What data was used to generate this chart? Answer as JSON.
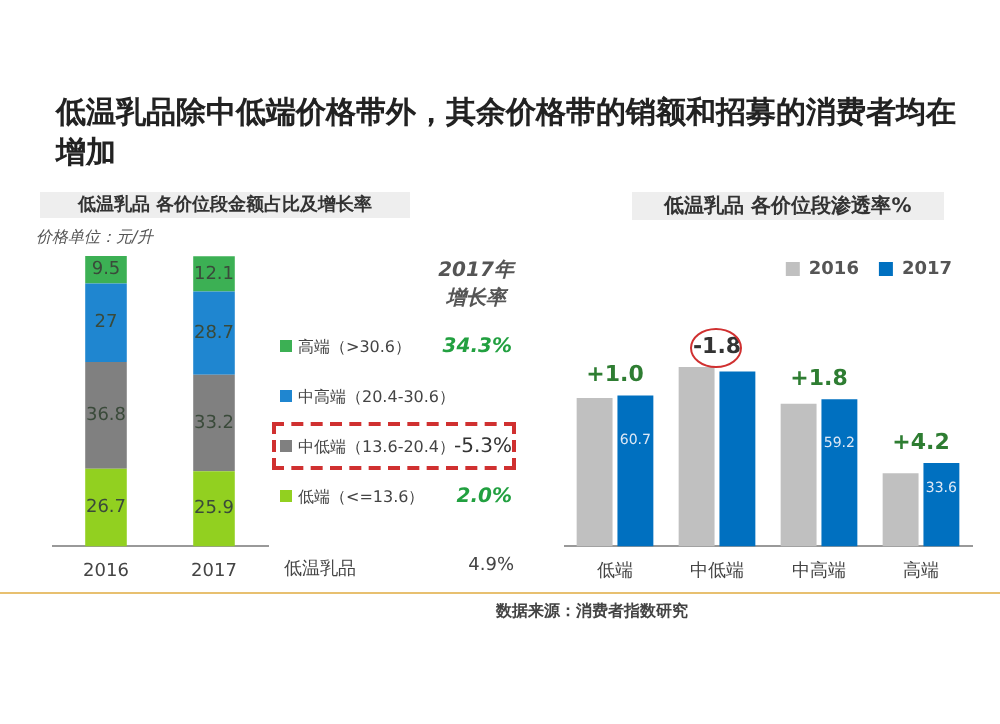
{
  "chart_data": [
    {
      "type": "bar",
      "title": "低温乳品除中低端价格带外，其余价格带的销额和招募的消费者均在增加",
      "subtitle": "低温乳品  各价位段金额占比及增长率",
      "categories": [
        "2016",
        "2017"
      ],
      "stacked": true,
      "data_labels": true,
      "legend": "right",
      "tick_labels": "x",
      "grid": false,
      "series": [
        {
          "name": "低端（<=13.6）",
          "color": "#92d020",
          "values": [
            26.7,
            25.9
          ]
        },
        {
          "name": "中低端（13.6-20.4）",
          "color": "#808080",
          "values": [
            36.8,
            33.2
          ]
        },
        {
          "name": "中高端（20.4-30.6）",
          "color": "#1f86d0",
          "values": [
            27.0,
            28.7
          ]
        },
        {
          "name": "高端（>30.6）",
          "color": "#3cb054",
          "values": [
            9.5,
            12.1
          ]
        }
      ],
      "annotations": [
        "价格单位：元/升",
        "2017年增长率",
        "34.3%",
        "-5.3%",
        "2.0%",
        "低温乳品",
        "4.9%"
      ]
    },
    {
      "type": "bar",
      "title": "低温乳品  各价位段渗透率%",
      "categories": [
        "低端",
        "中低端",
        "中高端",
        "高端"
      ],
      "legend": "top right",
      "tick_labels": "x",
      "grid": false,
      "series": [
        {
          "name": "2016",
          "color": "#c0c0c0",
          "values": [
            59.7,
            72.2,
            57.4,
            29.4
          ]
        },
        {
          "name": "2017",
          "color": "#0070c0",
          "values": [
            60.7,
            70.4,
            59.2,
            33.6
          ],
          "value_labels": [
            "60.7",
            null,
            "59.2",
            "33.6"
          ]
        }
      ],
      "annotations": [
        {
          "text": "+1.0",
          "x": "低端",
          "y": 60.7
        },
        {
          "text": "-1.8",
          "x": "中低端",
          "y": 72.2
        },
        {
          "text": "+1.8",
          "x": "中高端",
          "y": 59.2
        },
        {
          "text": "+4.2",
          "x": "高端",
          "y": 33.6
        },
        "数据来源：消费者指数研究"
      ]
    }
  ]
}
